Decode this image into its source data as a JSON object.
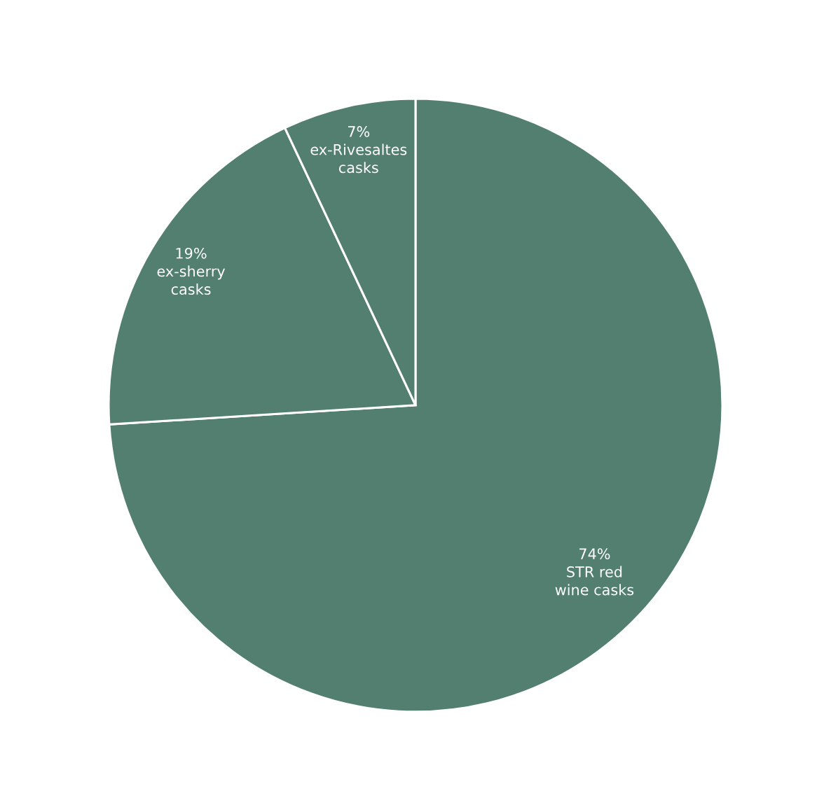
{
  "chart_data": {
    "type": "pie",
    "categories": [
      "STR red\nwine casks",
      "ex-sherry\ncasks",
      "ex-Rivesaltes\ncasks"
    ],
    "values": [
      74,
      19,
      7
    ],
    "value_labels": [
      "74%",
      "19%",
      "7%"
    ],
    "colors": [
      "#527f70",
      "#527f70",
      "#527f70"
    ]
  }
}
